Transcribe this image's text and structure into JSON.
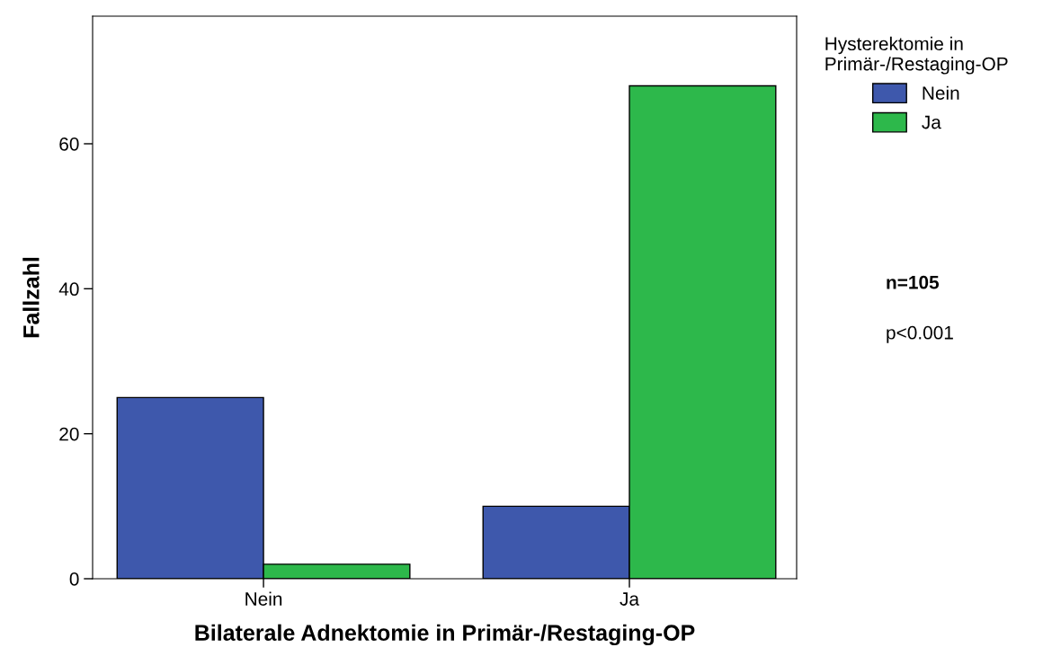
{
  "chart_data": {
    "type": "bar",
    "xlabel": "Bilaterale Adnektomie in Primär-/Restaging-OP",
    "ylabel": "Fallzahl",
    "legend_title": "Hysterektomie in\nPrimär-/Restaging-OP",
    "categories": [
      "Nein",
      "Ja"
    ],
    "series": [
      {
        "name": "Nein",
        "color": "#3e58ac",
        "values": [
          25,
          10
        ]
      },
      {
        "name": "Ja",
        "color": "#2db84b",
        "values": [
          2,
          68
        ]
      }
    ],
    "ylim": [
      0,
      77.6
    ],
    "yticks": [
      0,
      20,
      40,
      60
    ],
    "grid": false,
    "legend": "top right",
    "annotations": [
      "n=105",
      "p<0.001"
    ]
  }
}
